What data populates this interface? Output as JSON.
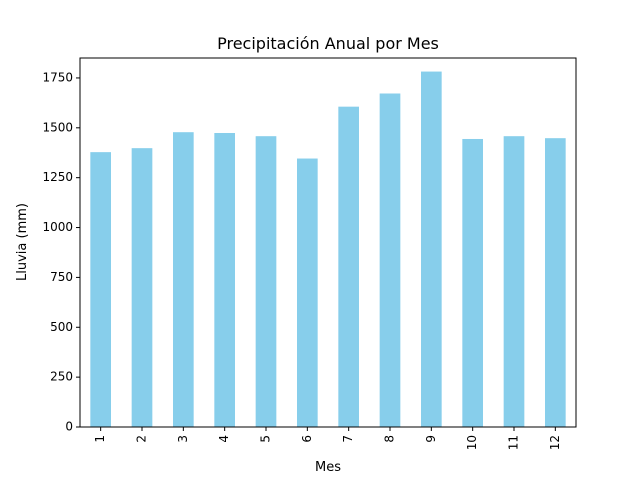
{
  "chart_data": {
    "type": "bar",
    "title": "Precipitación Anual por Mes",
    "xlabel": "Mes",
    "ylabel": "Lluvia (mm)",
    "categories": [
      "1",
      "2",
      "3",
      "4",
      "5",
      "6",
      "7",
      "8",
      "9",
      "10",
      "11",
      "12"
    ],
    "values": [
      1378,
      1398,
      1478,
      1474,
      1458,
      1346,
      1606,
      1672,
      1782,
      1444,
      1458,
      1448
    ],
    "ylim": [
      0,
      1850
    ],
    "yticks": [
      0,
      250,
      500,
      750,
      1000,
      1250,
      1500,
      1750
    ],
    "bar_color": "#87ceeb",
    "grid": false,
    "legend": "none"
  }
}
